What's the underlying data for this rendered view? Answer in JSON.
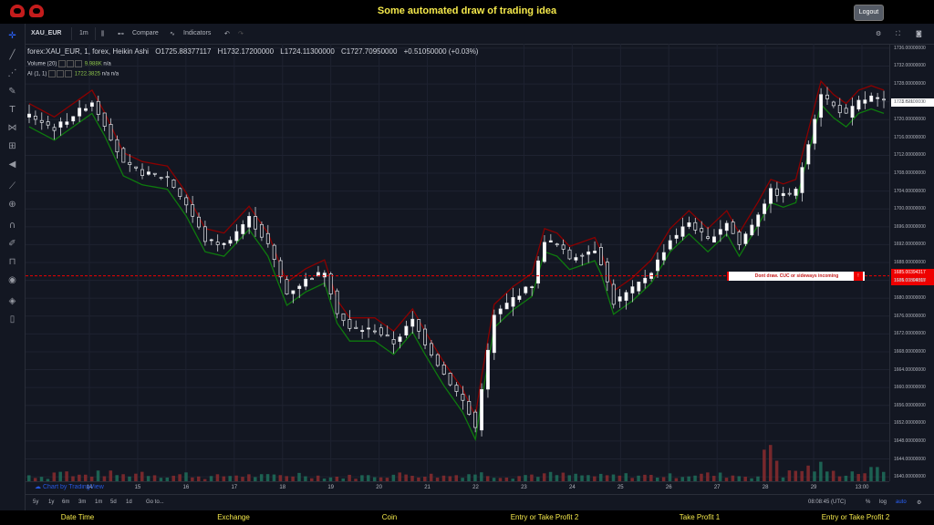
{
  "app": {
    "title": "Some automated draw of trading idea",
    "logout_label": "Logout"
  },
  "toolbar": {
    "symbol": "XAU_EUR",
    "interval": "1m",
    "compare_label": "Compare",
    "indicators_label": "Indicators"
  },
  "legend": {
    "symbol_line": "forex:XAU_EUR, 1, forex, Heikin Ashi",
    "open": "O1725.88377117",
    "high": "H1732.17200000",
    "low": "L1724.11300000",
    "close": "C1727.70950000",
    "change": "+0.51050000 (+0.03%)",
    "volume_label": "Volume (20)",
    "volume_value": "9.988K",
    "volume_na": "n/a",
    "ai_label": "AI (1, 1)",
    "ai_value": "1722.3825",
    "ai_na1": "n/a",
    "ai_na2": "n/a"
  },
  "note": {
    "text": "Dont draw. CUC or sideways incoming",
    "end": "!"
  },
  "price_labels": {
    "current": "1723.82100000",
    "line1": "1685.00394317",
    "line2": "1685.00394317"
  },
  "watermark": "Chart by TradingView",
  "bottombar": {
    "ranges": [
      "5y",
      "1y",
      "6m",
      "3m",
      "1m",
      "5d",
      "1d"
    ],
    "goto": "Go to...",
    "clock": "08:08:45 (UTC)",
    "pct": "%",
    "log": "log",
    "auto": "auto"
  },
  "footer": {
    "columns": [
      "Date Time",
      "Exchange",
      "Coin",
      "Entry or Take Profit 2",
      "Take Profit 1",
      "Entry or Take Profit 2"
    ]
  },
  "colors": {
    "up": "#26a69a",
    "down": "#ef5350",
    "candle": "#ffffff",
    "band_upper": "#8b0000",
    "band_lower": "#0e7a0e",
    "accent": "#f5e94b"
  },
  "chart_data": {
    "type": "candlestick",
    "x_ticks": [
      "14",
      "15",
      "16",
      "17",
      "18",
      "19",
      "20",
      "21",
      "22",
      "23",
      "24",
      "25",
      "26",
      "27",
      "28",
      "29",
      "13:00"
    ],
    "y_ticks": [
      "1736.00000000",
      "1732.00000000",
      "1728.00000000",
      "1724.00000000",
      "1720.00000000",
      "1716.00000000",
      "1712.00000000",
      "1708.00000000",
      "1704.00000000",
      "1700.00000000",
      "1696.00000000",
      "1692.00000000",
      "1688.00000000",
      "1684.00000000",
      "1680.00000000",
      "1676.00000000",
      "1672.00000000",
      "1668.00000000",
      "1664.00000000",
      "1660.00000000",
      "1656.00000000",
      "1652.00000000",
      "1648.00000000",
      "1644.00000000",
      "1640.00000000"
    ],
    "ylim": [
      1639,
      1737
    ],
    "close_path": [
      [
        0,
        1721
      ],
      [
        4,
        1718
      ],
      [
        8,
        1722
      ],
      [
        10,
        1724
      ],
      [
        12,
        1719
      ],
      [
        15,
        1710
      ],
      [
        18,
        1708
      ],
      [
        22,
        1707
      ],
      [
        25,
        1701
      ],
      [
        28,
        1693
      ],
      [
        31,
        1692
      ],
      [
        35,
        1698
      ],
      [
        38,
        1692
      ],
      [
        41,
        1681
      ],
      [
        44,
        1684
      ],
      [
        47,
        1686
      ],
      [
        49,
        1677
      ],
      [
        51,
        1673
      ],
      [
        55,
        1673
      ],
      [
        58,
        1670
      ],
      [
        61,
        1675
      ],
      [
        63,
        1670
      ],
      [
        66,
        1663
      ],
      [
        69,
        1657
      ],
      [
        71,
        1651
      ],
      [
        72,
        1660
      ],
      [
        74,
        1676
      ],
      [
        77,
        1680
      ],
      [
        80,
        1683
      ],
      [
        82,
        1693
      ],
      [
        84,
        1692
      ],
      [
        86,
        1689
      ],
      [
        88,
        1690
      ],
      [
        90,
        1691
      ],
      [
        91,
        1688
      ],
      [
        93,
        1679
      ],
      [
        96,
        1682
      ],
      [
        99,
        1686
      ],
      [
        102,
        1693
      ],
      [
        105,
        1697
      ],
      [
        108,
        1693
      ],
      [
        111,
        1697
      ],
      [
        113,
        1692
      ],
      [
        116,
        1699
      ],
      [
        118,
        1704
      ],
      [
        120,
        1703
      ],
      [
        122,
        1704
      ],
      [
        124,
        1715
      ],
      [
        126,
        1726
      ],
      [
        128,
        1723
      ],
      [
        130,
        1721
      ],
      [
        132,
        1724
      ],
      [
        134,
        1725
      ],
      [
        136,
        1724
      ]
    ],
    "volume_envelope": [
      [
        0,
        6
      ],
      [
        3,
        4
      ],
      [
        5,
        12
      ],
      [
        7,
        5
      ],
      [
        12,
        8
      ],
      [
        15,
        6
      ],
      [
        18,
        9
      ],
      [
        22,
        5
      ],
      [
        25,
        7
      ],
      [
        28,
        4
      ],
      [
        33,
        6
      ],
      [
        38,
        5
      ],
      [
        43,
        7
      ],
      [
        48,
        4
      ],
      [
        53,
        5
      ],
      [
        57,
        6
      ],
      [
        61,
        7
      ],
      [
        66,
        5
      ],
      [
        71,
        8
      ],
      [
        74,
        6
      ],
      [
        77,
        5
      ],
      [
        81,
        7
      ],
      [
        86,
        6
      ],
      [
        91,
        5
      ],
      [
        96,
        6
      ],
      [
        101,
        5
      ],
      [
        106,
        7
      ],
      [
        111,
        6
      ],
      [
        116,
        5
      ],
      [
        118,
        40
      ],
      [
        120,
        6
      ],
      [
        123,
        12
      ],
      [
        126,
        14
      ],
      [
        128,
        8
      ],
      [
        131,
        9
      ],
      [
        134,
        10
      ],
      [
        136,
        12
      ]
    ],
    "price_line": 1685.00394317,
    "current_price": 1723.821
  }
}
